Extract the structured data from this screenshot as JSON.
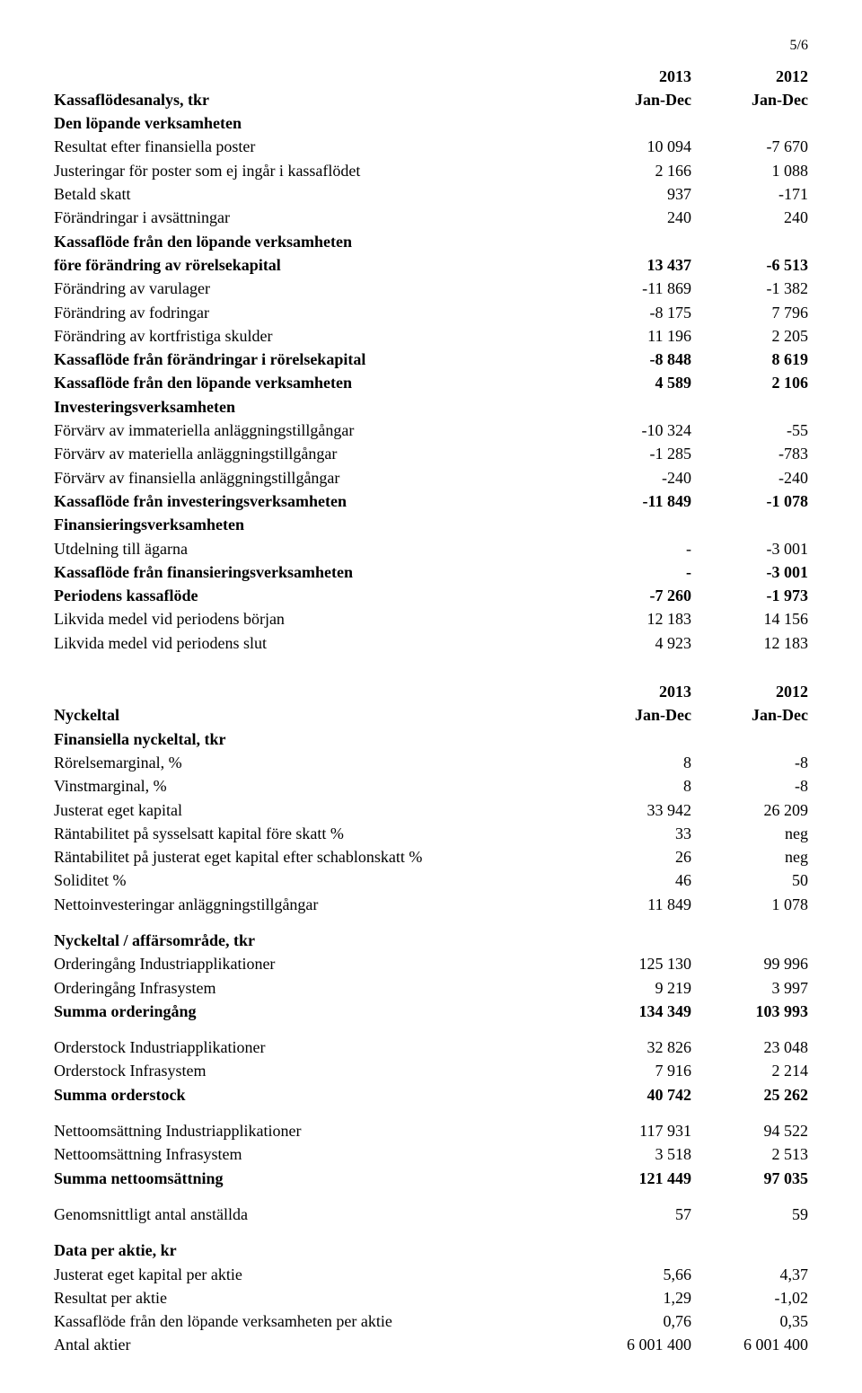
{
  "pageNumber": "5/6",
  "table1": {
    "header": {
      "label": "Kassaflödesanalys, tkr",
      "c1a": "2013",
      "c1b": "Jan-Dec",
      "c2a": "2012",
      "c2b": "Jan-Dec"
    },
    "rows": [
      {
        "bold": true,
        "label": "Den löpande verksamheten",
        "v1": "",
        "v2": ""
      },
      {
        "label": "Resultat efter finansiella poster",
        "v1": "10 094",
        "v2": "-7 670"
      },
      {
        "label": "Justeringar för poster som ej ingår i kassaflödet",
        "v1": "2 166",
        "v2": "1 088"
      },
      {
        "label": "Betald skatt",
        "v1": "937",
        "v2": "-171"
      },
      {
        "label": "Förändringar i avsättningar",
        "v1": "240",
        "v2": "240"
      },
      {
        "bold": true,
        "label": "Kassaflöde från den löpande verksamheten",
        "v1": "",
        "v2": ""
      },
      {
        "bold": true,
        "label": "före förändring av rörelsekapital",
        "v1": "13 437",
        "v2": "-6 513"
      },
      {
        "label": "Förändring av varulager",
        "v1": "-11 869",
        "v2": "-1 382"
      },
      {
        "label": "Förändring av fodringar",
        "v1": "-8 175",
        "v2": "7 796"
      },
      {
        "label": "Förändring av kortfristiga skulder",
        "v1": "11 196",
        "v2": "2 205"
      },
      {
        "bold": true,
        "label": "Kassaflöde från förändringar i rörelsekapital",
        "v1": "-8 848",
        "v2": "8 619"
      },
      {
        "bold": true,
        "label": "Kassaflöde från den löpande verksamheten",
        "v1": "4 589",
        "v2": "2 106"
      },
      {
        "bold": true,
        "label": "Investeringsverksamheten",
        "v1": "",
        "v2": ""
      },
      {
        "label": "Förvärv av immateriella anläggningstillgångar",
        "v1": "-10 324",
        "v2": "-55"
      },
      {
        "label": "Förvärv av materiella anläggningstillgångar",
        "v1": "-1 285",
        "v2": "-783"
      },
      {
        "label": "Förvärv av finansiella anläggningstillgångar",
        "v1": "-240",
        "v2": "-240"
      },
      {
        "bold": true,
        "label": "Kassaflöde från investeringsverksamheten",
        "v1": "-11 849",
        "v2": "-1 078"
      },
      {
        "bold": true,
        "label": "Finansieringsverksamheten",
        "v1": "",
        "v2": ""
      },
      {
        "label": "Utdelning till ägarna",
        "v1": "-",
        "v2": "-3 001"
      },
      {
        "bold": true,
        "label": "Kassaflöde från finansieringsverksamheten",
        "v1": "-",
        "v2": "-3 001"
      },
      {
        "bold": true,
        "label": "Periodens kassaflöde",
        "v1": "-7 260",
        "v2": "-1 973"
      },
      {
        "label": "Likvida medel vid periodens början",
        "v1": "12 183",
        "v2": "14 156"
      },
      {
        "label": "Likvida medel vid periodens slut",
        "v1": "4 923",
        "v2": "12 183"
      }
    ]
  },
  "table2": {
    "header": {
      "label": "Nyckeltal",
      "c1a": "2013",
      "c1b": "Jan-Dec",
      "c2a": "2012",
      "c2b": "Jan-Dec"
    },
    "groups": [
      {
        "rows": [
          {
            "bold": true,
            "label": "Finansiella nyckeltal, tkr",
            "v1": "",
            "v2": ""
          },
          {
            "label": "Rörelsemarginal, %",
            "v1": "8",
            "v2": "-8"
          },
          {
            "label": "Vinstmarginal, %",
            "v1": "8",
            "v2": "-8"
          },
          {
            "label": "Justerat eget kapital",
            "v1": "33 942",
            "v2": "26 209"
          },
          {
            "label": "Räntabilitet på sysselsatt kapital före skatt %",
            "v1": "33",
            "v2": "neg"
          },
          {
            "label": "Räntabilitet på justerat eget kapital efter schablonskatt %",
            "v1": "26",
            "v2": "neg"
          },
          {
            "label": "Soliditet %",
            "v1": "46",
            "v2": "50"
          },
          {
            "label": "Nettoinvesteringar anläggningstillgångar",
            "v1": "11 849",
            "v2": "1 078"
          }
        ]
      },
      {
        "rows": [
          {
            "bold": true,
            "label": "Nyckeltal / affärsområde, tkr",
            "v1": "",
            "v2": ""
          },
          {
            "label": "Orderingång Industriapplikationer",
            "v1": "125 130",
            "v2": "99 996"
          },
          {
            "label": "Orderingång Infrasystem",
            "v1": "9 219",
            "v2": "3 997"
          },
          {
            "bold": true,
            "label": "Summa orderingång",
            "v1": "134 349",
            "v2": "103 993"
          }
        ]
      },
      {
        "rows": [
          {
            "label": "Orderstock Industriapplikationer",
            "v1": "32 826",
            "v2": "23 048"
          },
          {
            "label": "Orderstock Infrasystem",
            "v1": "7 916",
            "v2": "2 214"
          },
          {
            "bold": true,
            "label": "Summa orderstock",
            "v1": "40 742",
            "v2": "25 262"
          }
        ]
      },
      {
        "rows": [
          {
            "label": "Nettoomsättning Industriapplikationer",
            "v1": "117 931",
            "v2": "94 522"
          },
          {
            "label": "Nettoomsättning Infrasystem",
            "v1": "3 518",
            "v2": "2 513"
          },
          {
            "bold": true,
            "label": "Summa nettoomsättning",
            "v1": "121 449",
            "v2": "97 035"
          }
        ]
      },
      {
        "rows": [
          {
            "label": "Genomsnittligt antal anställda",
            "v1": "57",
            "v2": "59"
          }
        ]
      },
      {
        "rows": [
          {
            "bold": true,
            "label": "Data per aktie, kr",
            "v1": "",
            "v2": ""
          },
          {
            "label": "Justerat eget kapital per aktie",
            "v1": "5,66",
            "v2": "4,37"
          },
          {
            "label": "Resultat per aktie",
            "v1": "1,29",
            "v2": "-1,02"
          },
          {
            "label": "Kassaflöde från den löpande verksamheten per aktie",
            "v1": "0,76",
            "v2": "0,35"
          },
          {
            "label": "Antal aktier",
            "v1": "6 001 400",
            "v2": "6 001 400"
          }
        ]
      }
    ]
  }
}
